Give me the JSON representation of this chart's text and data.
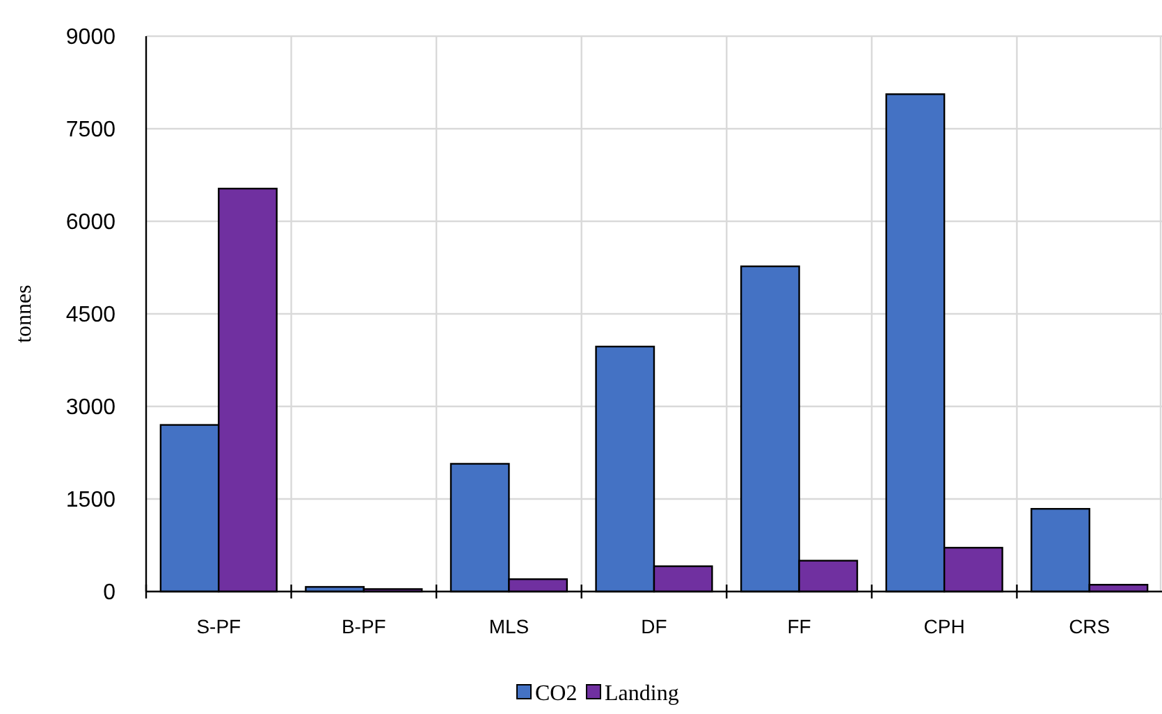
{
  "chart_data": {
    "type": "bar",
    "ylabel": "tonnes",
    "categories": [
      "S-PF",
      "B-PF",
      "MLS",
      "DF",
      "FF",
      "CPH",
      "CRS"
    ],
    "series": [
      {
        "name": "CO2",
        "color": "#4472c4",
        "values": [
          2700,
          75,
          2070,
          3970,
          5270,
          8060,
          1340
        ]
      },
      {
        "name": "Landing",
        "color": "#7030a0",
        "values": [
          6530,
          40,
          200,
          410,
          500,
          710,
          110
        ]
      }
    ],
    "ylim": [
      0,
      9000
    ],
    "yticks": [
      0,
      1500,
      3000,
      4500,
      6000,
      7500,
      9000
    ],
    "grid": true,
    "legend": "bottom"
  }
}
